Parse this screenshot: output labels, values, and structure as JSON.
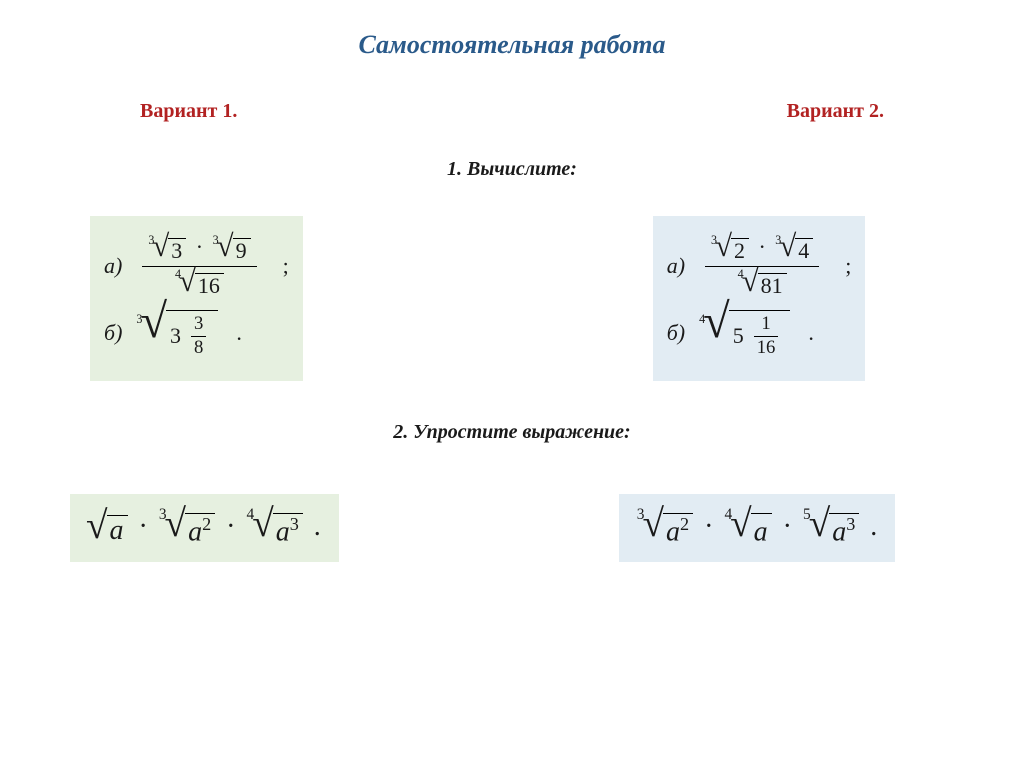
{
  "title": "Самостоятельная работа",
  "variants": {
    "v1": "Вариант 1.",
    "v2": "Вариант 2."
  },
  "task1_label": "1. Вычислите:",
  "task2_label": "2. Упростите выражение:",
  "colors": {
    "title": "#2a5a8a",
    "variant_label": "#b22222",
    "text": "#1a1a1a",
    "box_green": "#e6f0e0",
    "box_blue": "#e2ecf3",
    "page_bg": "#ffffff"
  },
  "v1": {
    "a": {
      "letter": "а)",
      "num_root1": {
        "index": "3",
        "radicand": "3"
      },
      "num_root2": {
        "index": "3",
        "radicand": "9"
      },
      "den_root": {
        "index": "4",
        "radicand": "16"
      },
      "trailer": ";"
    },
    "b": {
      "letter": "б)",
      "outer_index": "3",
      "mixed_int": "3",
      "mixed_num": "3",
      "mixed_den": "8",
      "trailer": "."
    },
    "expr": {
      "t1": {
        "index": "",
        "radicand": "a"
      },
      "t2": {
        "index": "3",
        "radicand_base": "a",
        "radicand_exp": "2"
      },
      "t3": {
        "index": "4",
        "radicand_base": "a",
        "radicand_exp": "3"
      },
      "trailer": "."
    }
  },
  "v2": {
    "a": {
      "letter": "а)",
      "num_root1": {
        "index": "3",
        "radicand": "2"
      },
      "num_root2": {
        "index": "3",
        "radicand": "4"
      },
      "den_root": {
        "index": "4",
        "radicand": "81"
      },
      "trailer": ";"
    },
    "b": {
      "letter": "б)",
      "outer_index": "4",
      "mixed_int": "5",
      "mixed_num": "1",
      "mixed_den": "16",
      "trailer": "."
    },
    "expr": {
      "t1": {
        "index": "3",
        "radicand_base": "a",
        "radicand_exp": "2"
      },
      "t2": {
        "index": "4",
        "radicand_base": "a",
        "radicand_exp": ""
      },
      "t3": {
        "index": "5",
        "radicand_base": "a",
        "radicand_exp": "3"
      },
      "trailer": "."
    }
  },
  "glyphs": {
    "dot": "·",
    "radical": "√"
  }
}
